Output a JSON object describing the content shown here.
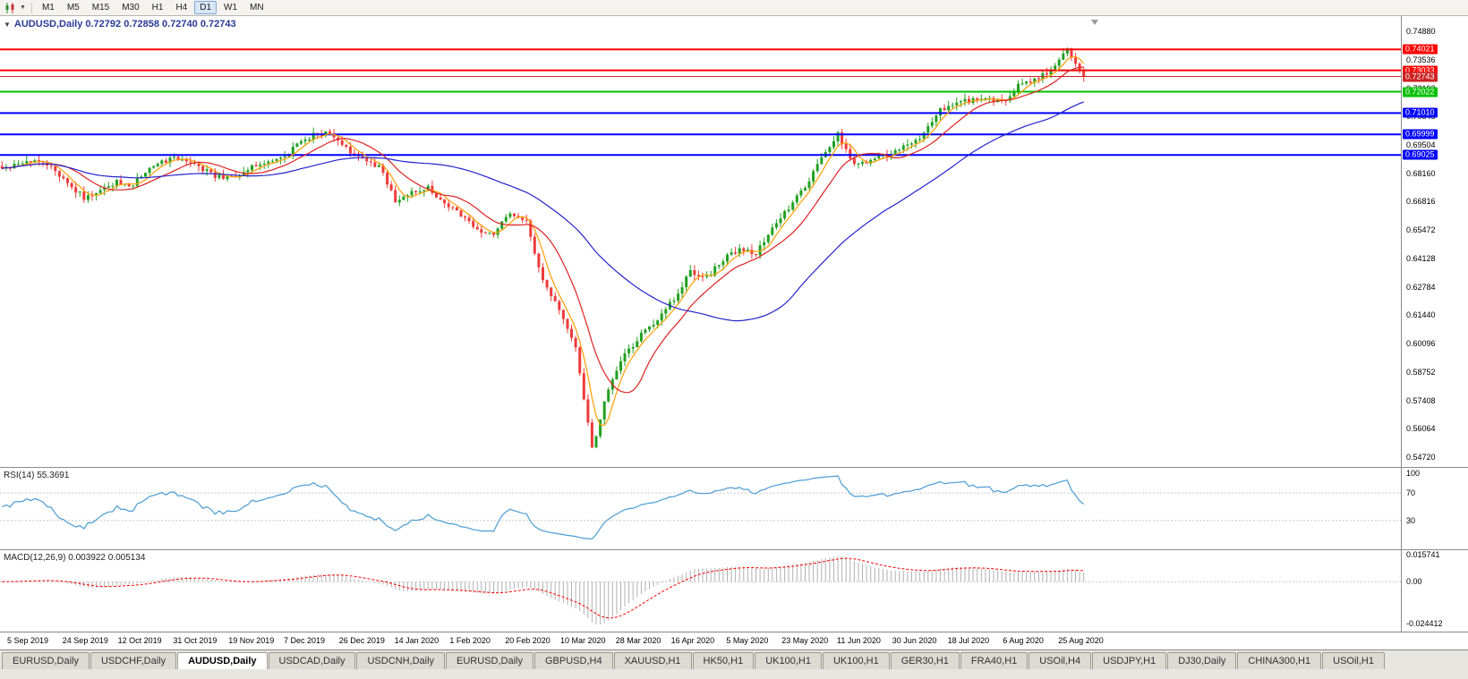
{
  "toolbar": {
    "timeframes": [
      "M1",
      "M5",
      "M15",
      "M30",
      "H1",
      "H4",
      "D1",
      "W1",
      "MN"
    ],
    "active": "D1",
    "chart_icon": "candlestick-chart-icon"
  },
  "chart": {
    "header": "AUDUSD,Daily 0.72792 0.72858 0.72740 0.72743",
    "symbol": "AUDUSD",
    "period": "Daily",
    "open": "0.72792",
    "high": "0.72858",
    "low": "0.72740",
    "close": "0.72743"
  },
  "rsi_panel": {
    "label": "RSI(14) 55.3691",
    "levels": [
      "100",
      "70",
      "30"
    ]
  },
  "macd_panel": {
    "label": "MACD(12,26,9) 0.003922 0.005134",
    "levels": [
      "0.015741",
      "0.00",
      "-0.024412"
    ]
  },
  "chart_data": {
    "type": "candlestick",
    "symbol": "AUDUSD",
    "timeframe": "Daily",
    "y_min": 0.543,
    "y_max": 0.756,
    "y_labels": [
      "0.74880",
      "0.73536",
      "0.72192",
      "0.70848",
      "0.69504",
      "0.68160",
      "0.66816",
      "0.65472",
      "0.64128",
      "0.62784",
      "0.61440",
      "0.60096",
      "0.58752",
      "0.57408",
      "0.56064",
      "0.54720"
    ],
    "x_labels": [
      "5 Sep 2019",
      "24 Sep 2019",
      "12 Oct 2019",
      "31 Oct 2019",
      "19 Nov 2019",
      "7 Dec 2019",
      "26 Dec 2019",
      "14 Jan 2020",
      "1 Feb 2020",
      "20 Feb 2020",
      "10 Mar 2020",
      "28 Mar 2020",
      "16 Apr 2020",
      "5 May 2020",
      "23 May 2020",
      "11 Jun 2020",
      "30 Jun 2020",
      "18 Jul 2020",
      "6 Aug 2020",
      "25 Aug 2020"
    ],
    "anchor_closes": [
      0.683,
      0.686,
      0.6885,
      0.684,
      0.677,
      0.67,
      0.6745,
      0.6775,
      0.676,
      0.6845,
      0.6875,
      0.689,
      0.6845,
      0.68,
      0.679,
      0.684,
      0.6855,
      0.6885,
      0.695,
      0.7,
      0.701,
      0.693,
      0.688,
      0.685,
      0.669,
      0.672,
      0.6745,
      0.668,
      0.662,
      0.655,
      0.653,
      0.663,
      0.658,
      0.63,
      0.617,
      0.598,
      0.551,
      0.58,
      0.596,
      0.605,
      0.613,
      0.622,
      0.635,
      0.632,
      0.641,
      0.645,
      0.644,
      0.655,
      0.665,
      0.675,
      0.69,
      0.7,
      0.685,
      0.688,
      0.69,
      0.695,
      0.698,
      0.71,
      0.715,
      0.716,
      0.718,
      0.715,
      0.723,
      0.726,
      0.73,
      0.7402,
      0.7274
    ],
    "interp_steps": 4,
    "current_price": 0.72743,
    "up_color": "#21a121",
    "down_color": "#ee3b3b",
    "hlines": [
      {
        "value": 0.74021,
        "label": "0.74021",
        "color": "#ff0000",
        "width": 2,
        "current": false
      },
      {
        "value": 0.73033,
        "label": "0.73033",
        "color": "#ff0000",
        "width": 2,
        "current": false
      },
      {
        "value": 0.72743,
        "label": "0.72743",
        "color": "#cc2222",
        "width": 1,
        "current": true
      },
      {
        "value": 0.72022,
        "label": "0.72022",
        "color": "#00c000",
        "width": 2,
        "current": false
      },
      {
        "value": 0.7101,
        "label": "0.71010",
        "color": "#0000ff",
        "width": 2,
        "current": false
      },
      {
        "value": 0.69999,
        "label": "0.69999",
        "color": "#0000ff",
        "width": 2,
        "current": false
      },
      {
        "value": 0.69025,
        "label": "0.69025",
        "color": "#0000ff",
        "width": 2,
        "current": false
      }
    ],
    "moving_averages": [
      {
        "period": 5,
        "color": "#ff9d00"
      },
      {
        "period": 13,
        "color": "#dd2222"
      },
      {
        "period": 50,
        "color": "#2424cc"
      }
    ],
    "rsi": {
      "period": 14,
      "value": 55.3691,
      "levels": [
        70,
        30
      ],
      "color": "#4a9cd4",
      "range": [
        0,
        100
      ]
    },
    "macd": {
      "fast": 12,
      "slow": 26,
      "signal": 9,
      "macd_value": 0.003922,
      "signal_value": 0.005134,
      "range": [
        -0.024412,
        0.015741
      ],
      "hist_color": "#b0b0b0",
      "signal_color": "#ff0000"
    }
  },
  "tabs": [
    {
      "label": "EURUSD,Daily",
      "active": false
    },
    {
      "label": "USDCHF,Daily",
      "active": false
    },
    {
      "label": "AUDUSD,Daily",
      "active": true
    },
    {
      "label": "USDCAD,Daily",
      "active": false
    },
    {
      "label": "USDCNH,Daily",
      "active": false
    },
    {
      "label": "EURUSD,Daily",
      "active": false
    },
    {
      "label": "GBPUSD,H4",
      "active": false
    },
    {
      "label": "XAUUSD,H1",
      "active": false
    },
    {
      "label": "HK50,H1",
      "active": false
    },
    {
      "label": "UK100,H1",
      "active": false
    },
    {
      "label": "UK100,H1",
      "active": false
    },
    {
      "label": "GER30,H1",
      "active": false
    },
    {
      "label": "FRA40,H1",
      "active": false
    },
    {
      "label": "USOil,H4",
      "active": false
    },
    {
      "label": "USDJPY,H1",
      "active": false
    },
    {
      "label": "DJ30,Daily",
      "active": false
    },
    {
      "label": "CHINA300,H1",
      "active": false
    },
    {
      "label": "USOil,H1",
      "active": false
    }
  ]
}
